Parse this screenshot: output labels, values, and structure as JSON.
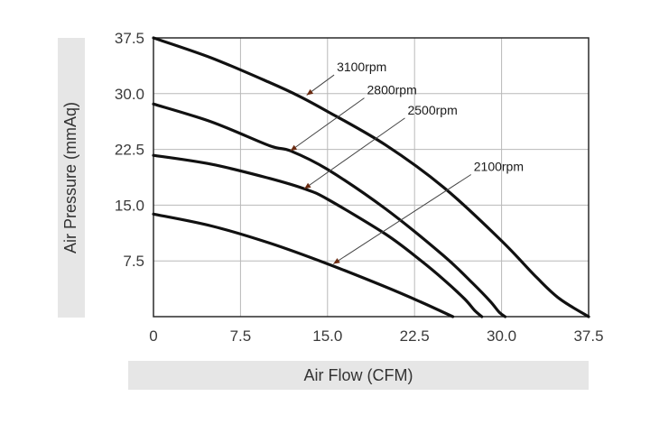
{
  "chart_data": {
    "type": "line",
    "xlabel": "Air Flow (CFM)",
    "ylabel": "Air Pressure (mmAq)",
    "xlim": [
      0,
      37.5
    ],
    "ylim": [
      0,
      37.5
    ],
    "x_ticks": [
      "0",
      "7.5",
      "15.0",
      "22.5",
      "30.0",
      "37.5"
    ],
    "y_ticks": [
      "7.5",
      "15.0",
      "22.5",
      "30.0",
      "37.5"
    ],
    "grid": true,
    "legend": "none",
    "series": [
      {
        "name": "3100rpm",
        "x": [
          0,
          5,
          10,
          12.5,
          15,
          20,
          25,
          30,
          33,
          35,
          37.5
        ],
        "y": [
          37.5,
          34.8,
          31.5,
          29.7,
          27.6,
          23.1,
          17.4,
          10.2,
          5.3,
          2.4,
          0
        ],
        "label_x": 13.2,
        "label_y": 29.8
      },
      {
        "name": "2800rpm",
        "x": [
          0,
          5,
          10,
          11.8,
          15,
          20,
          25,
          27.5,
          29,
          29.8,
          30.3
        ],
        "y": [
          28.6,
          26.2,
          23.0,
          22.3,
          19.8,
          14.5,
          8.2,
          4.5,
          2.1,
          0.6,
          0
        ],
        "label_x": 11.8,
        "label_y": 22.3
      },
      {
        "name": "2500rpm",
        "x": [
          0,
          5,
          10,
          13,
          15,
          20,
          23,
          25,
          26.8,
          27.7,
          28.3
        ],
        "y": [
          21.7,
          20.5,
          18.6,
          17.2,
          15.8,
          11.1,
          7.6,
          5.0,
          2.4,
          0.8,
          0
        ],
        "label_x": 13,
        "label_y": 17.2
      },
      {
        "name": "2100rpm",
        "x": [
          0,
          5,
          10,
          15,
          20,
          23,
          25.8
        ],
        "y": [
          13.8,
          12.2,
          9.9,
          7.1,
          4.0,
          2.0,
          0
        ],
        "label_x": 15.5,
        "label_y": 7.1
      }
    ],
    "annotation_text_pos": [
      {
        "x": 15.8,
        "y": 33.0
      },
      {
        "x": 18.4,
        "y": 29.9
      },
      {
        "x": 21.9,
        "y": 27.2
      },
      {
        "x": 27.6,
        "y": 19.6
      }
    ]
  }
}
